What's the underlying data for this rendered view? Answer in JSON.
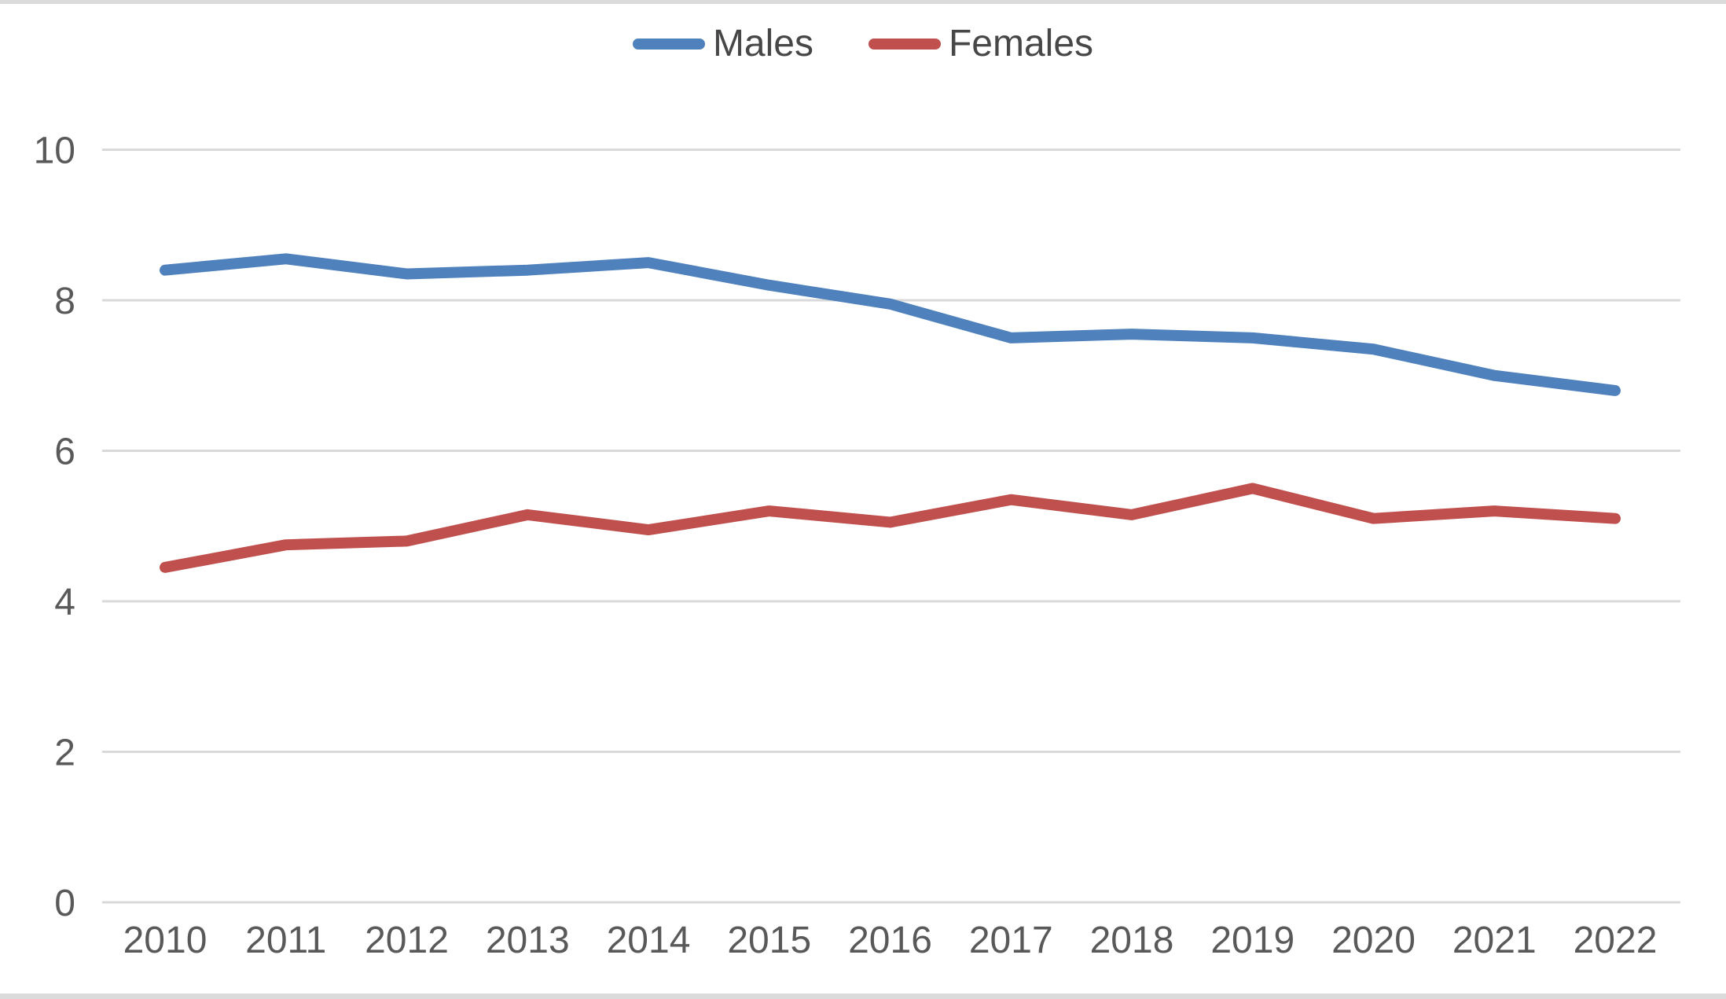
{
  "chart_data": {
    "type": "line",
    "title": "",
    "categories": [
      "2010",
      "2011",
      "2012",
      "2013",
      "2014",
      "2015",
      "2016",
      "2017",
      "2018",
      "2019",
      "2020",
      "2021",
      "2022"
    ],
    "series": [
      {
        "name": "Males",
        "color": "#4F81BD",
        "values": [
          8.4,
          8.55,
          8.35,
          8.4,
          8.5,
          8.2,
          7.95,
          7.5,
          7.55,
          7.5,
          7.35,
          7.0,
          6.8
        ]
      },
      {
        "name": "Females",
        "color": "#C0504D",
        "values": [
          4.45,
          4.75,
          4.8,
          5.15,
          4.95,
          5.2,
          5.05,
          5.35,
          5.15,
          5.5,
          5.1,
          5.2,
          5.1
        ]
      }
    ],
    "yticks": [
      0,
      2,
      4,
      6,
      8,
      10
    ],
    "ylim": [
      0,
      10
    ],
    "grid": true,
    "legend_position": "top"
  },
  "styles": {
    "grid_color": "#D9D9D9",
    "tick_text_color": "#595959",
    "legend_text_color": "#474747",
    "window_edge_color": "#DBDBDB",
    "background": "#FFFFFF",
    "line_width": 14
  }
}
